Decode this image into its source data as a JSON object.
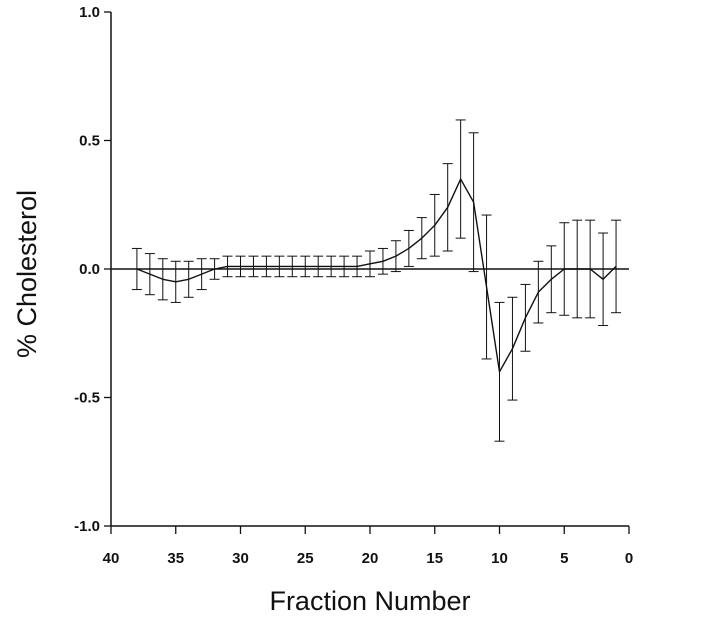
{
  "chart_data": {
    "type": "line",
    "title": "",
    "xlabel": "Fraction Number",
    "ylabel": "% Cholesterol",
    "xlim": [
      40,
      0
    ],
    "ylim": [
      -1.0,
      1.0
    ],
    "x_reversed": true,
    "xticks": [
      40,
      35,
      30,
      25,
      20,
      15,
      10,
      5,
      0
    ],
    "xtick_labels": [
      "40",
      "35",
      "30",
      "25",
      "20",
      "15",
      "10",
      "5",
      "0"
    ],
    "yticks": [
      1.0,
      0.5,
      0.0,
      -0.5,
      -1.0
    ],
    "ytick_labels": [
      "1.0",
      "0.5",
      "0.0",
      "-0.5",
      "-1.0"
    ],
    "reference_line": 0.0,
    "grid": false,
    "legend": false,
    "series": [
      {
        "x": [
          38,
          37,
          36,
          35,
          34,
          33,
          32,
          31,
          30,
          29,
          28,
          27,
          26,
          25,
          24,
          23,
          22,
          21,
          20,
          19,
          18,
          17,
          16,
          15,
          14,
          13,
          12,
          11,
          10,
          9,
          8,
          7,
          6,
          5,
          4,
          3,
          2,
          1
        ],
        "y": [
          0.0,
          -0.02,
          -0.04,
          -0.05,
          -0.04,
          -0.02,
          0.0,
          0.01,
          0.01,
          0.01,
          0.01,
          0.01,
          0.01,
          0.01,
          0.01,
          0.01,
          0.01,
          0.01,
          0.02,
          0.03,
          0.05,
          0.08,
          0.12,
          0.17,
          0.24,
          0.35,
          0.26,
          -0.07,
          -0.4,
          -0.31,
          -0.19,
          -0.09,
          -0.04,
          0.0,
          0.0,
          0.0,
          -0.04,
          0.01
        ],
        "y_err": [
          0.08,
          0.08,
          0.08,
          0.08,
          0.07,
          0.06,
          0.04,
          0.04,
          0.04,
          0.04,
          0.04,
          0.04,
          0.04,
          0.04,
          0.04,
          0.04,
          0.04,
          0.04,
          0.05,
          0.05,
          0.06,
          0.07,
          0.08,
          0.12,
          0.17,
          0.23,
          0.27,
          0.28,
          0.27,
          0.2,
          0.13,
          0.12,
          0.13,
          0.18,
          0.19,
          0.19,
          0.18,
          0.18
        ]
      }
    ],
    "colors": {
      "line": "#111111",
      "axis": "#111111"
    }
  }
}
